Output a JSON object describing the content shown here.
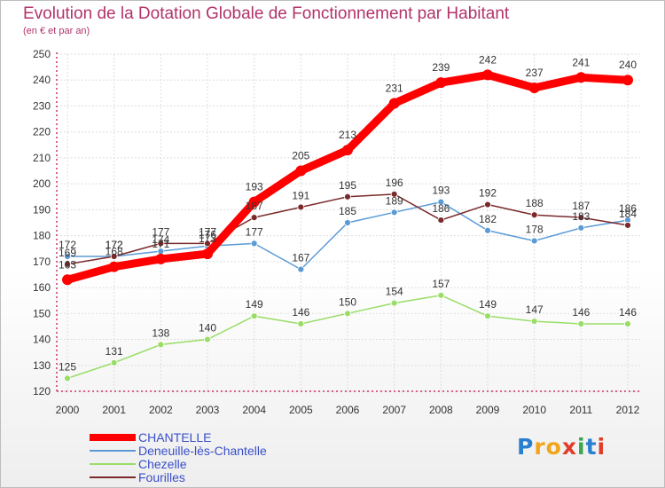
{
  "header": {
    "title": "Evolution de la Dotation Globale de Fonctionnement par Habitant",
    "subtitle": "(en € et par an)"
  },
  "logo": {
    "text": "Proxiti",
    "colors": [
      "#2a7fd0",
      "#f2a51a",
      "#f2a51a",
      "#e03c28",
      "#3aa64a",
      "#2a7fd0",
      "#e03c28"
    ]
  },
  "chart_data": {
    "type": "line",
    "x": [
      "2000",
      "2001",
      "2002",
      "2003",
      "2004",
      "2005",
      "2006",
      "2007",
      "2008",
      "2009",
      "2010",
      "2011",
      "2012"
    ],
    "ylim": [
      120,
      250
    ],
    "yticks": [
      120,
      130,
      140,
      150,
      160,
      170,
      180,
      190,
      200,
      210,
      220,
      230,
      240,
      250
    ],
    "grid": true,
    "legend": "bottom-left",
    "series": [
      {
        "name": "CHANTELLE",
        "color": "#ff0000",
        "values": [
          163,
          168,
          171,
          173,
          193,
          205,
          213,
          231,
          239,
          242,
          237,
          241,
          240
        ]
      },
      {
        "name": "Deneuille-lès-Chantelle",
        "color": "#5a9bd6",
        "values": [
          172,
          172,
          174,
          176,
          177,
          167,
          185,
          189,
          193,
          182,
          178,
          183,
          186
        ]
      },
      {
        "name": "Chezelle",
        "color": "#99dd66",
        "values": [
          125,
          131,
          138,
          140,
          149,
          146,
          150,
          154,
          157,
          149,
          147,
          146,
          146
        ]
      },
      {
        "name": "Fourilles",
        "color": "#7a2a2a",
        "values": [
          169,
          172,
          177,
          177,
          187,
          191,
          195,
          196,
          186,
          192,
          188,
          187,
          184
        ]
      }
    ]
  }
}
